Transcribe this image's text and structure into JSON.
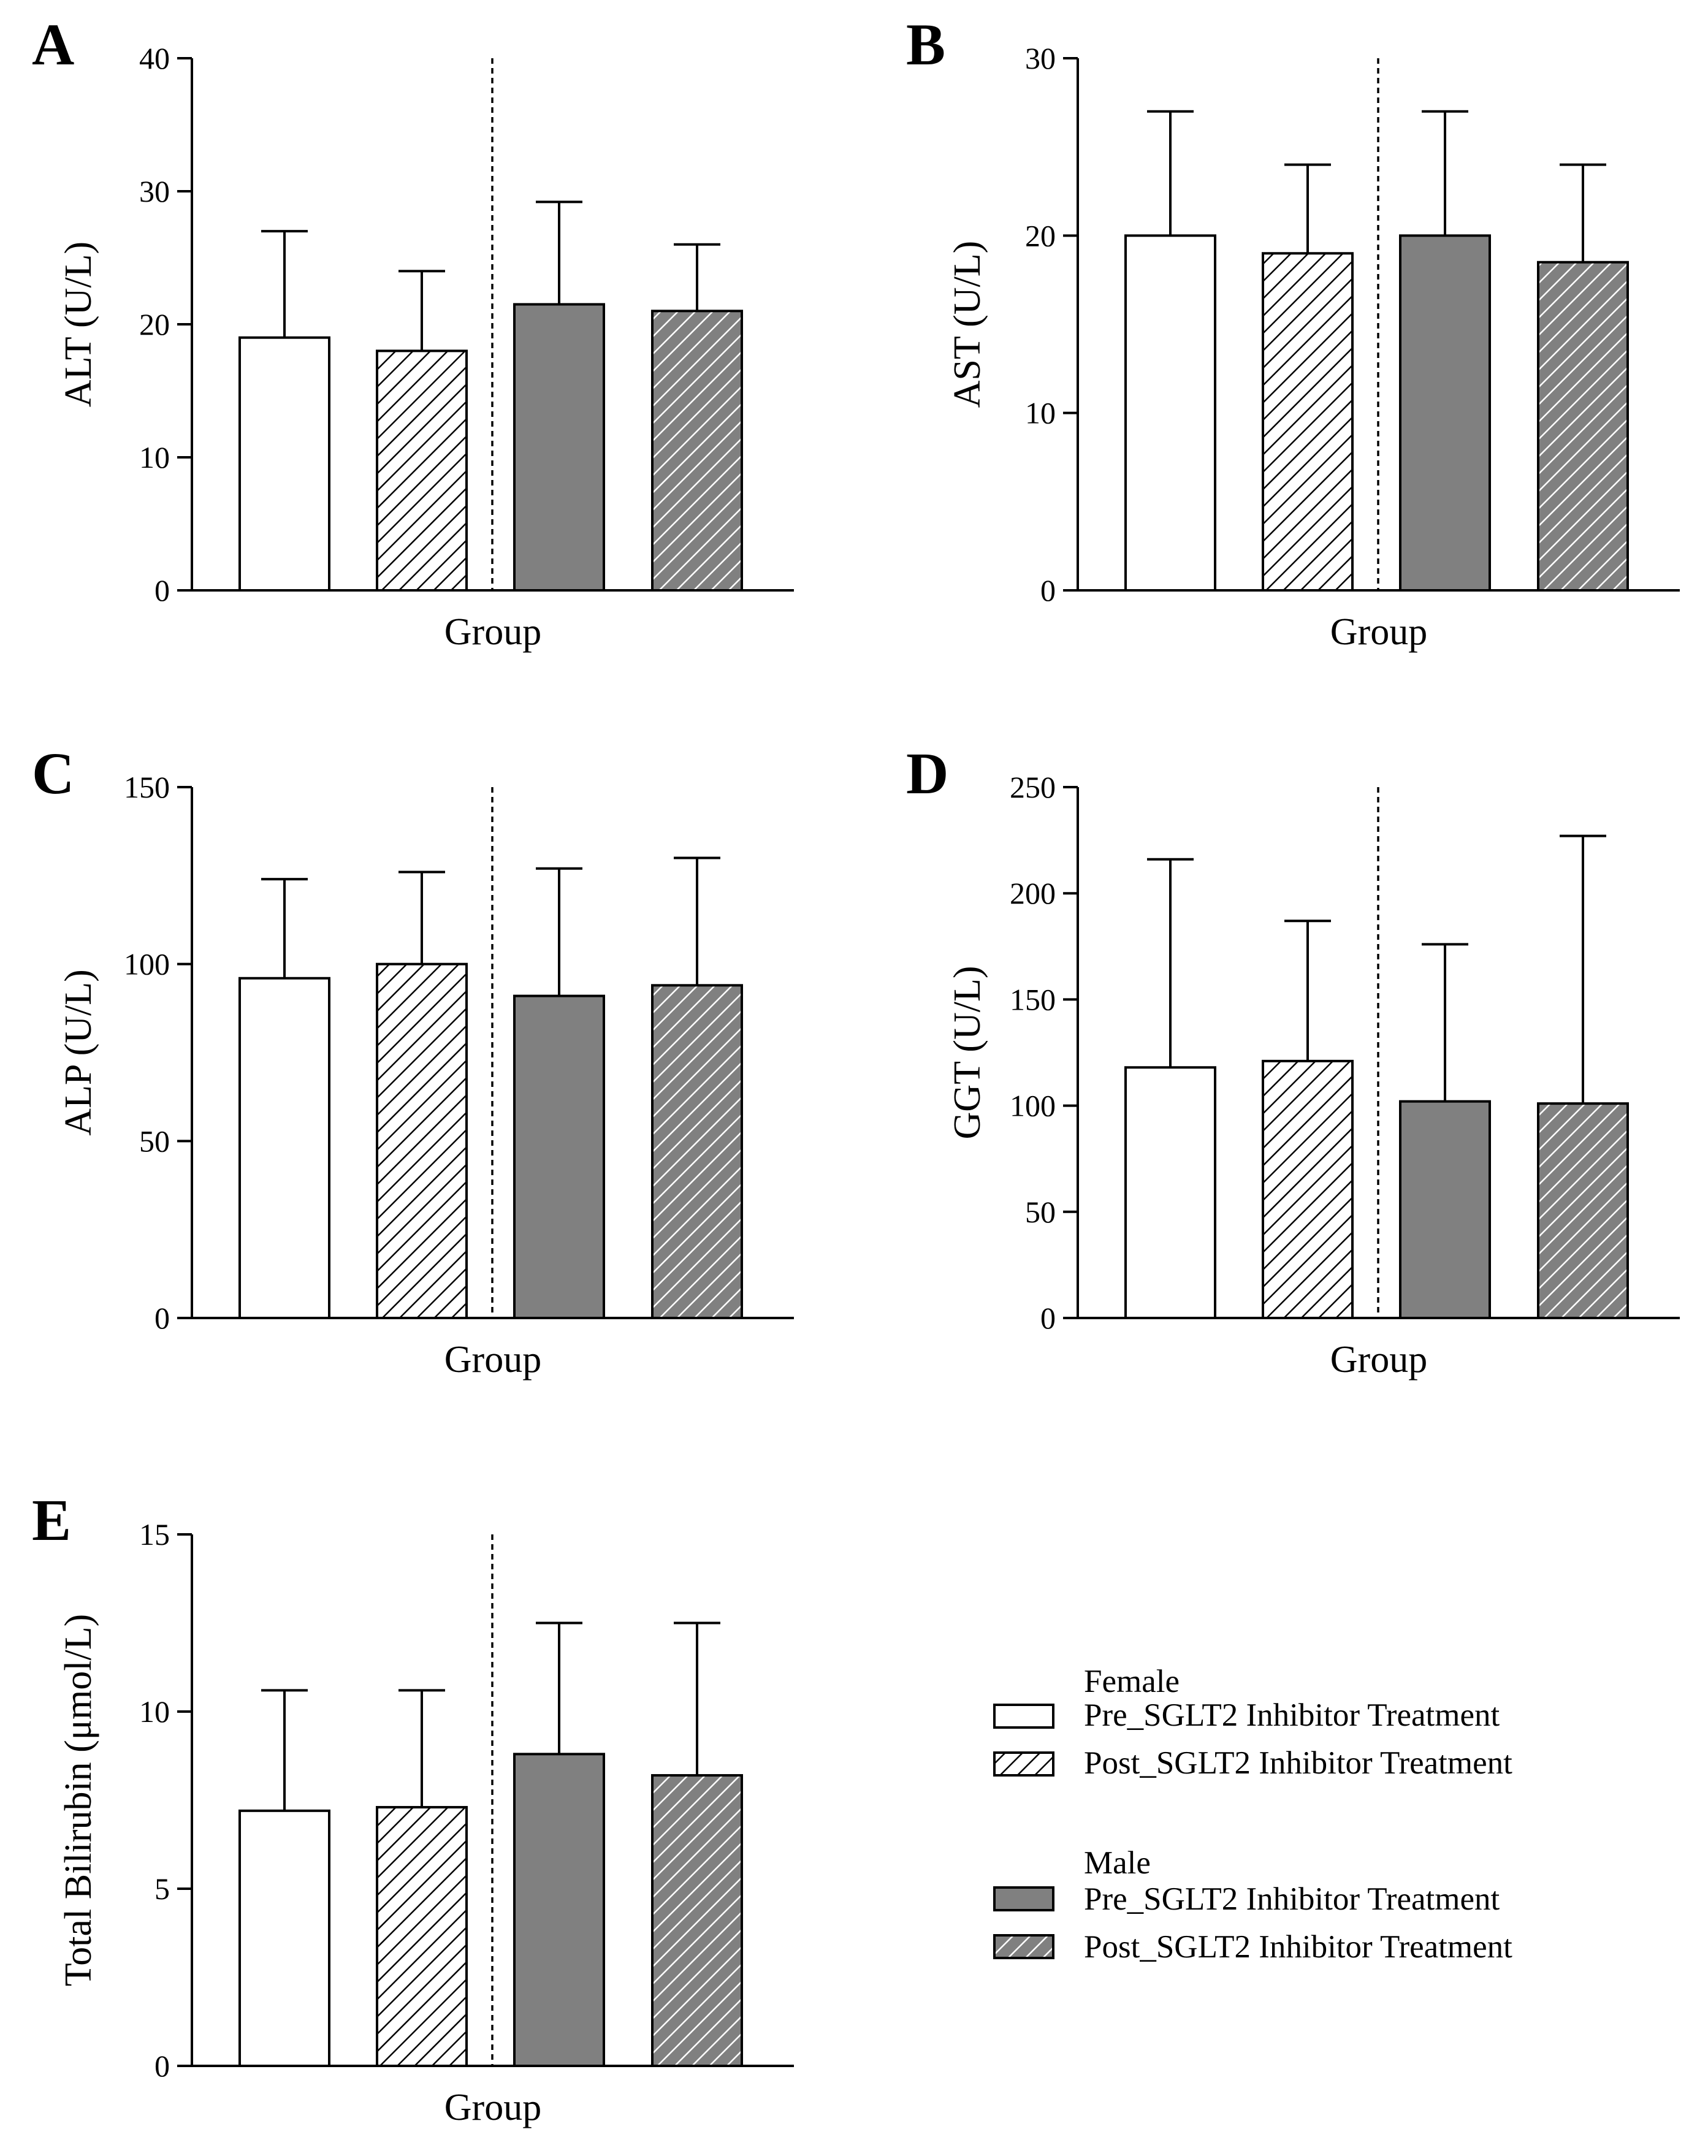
{
  "figure": {
    "colors": {
      "female_pre_fill": "#ffffff",
      "female_post_fill": "#ffffff",
      "male_pre_fill": "#808080",
      "male_post_fill": "#808080",
      "stroke": "#000000",
      "hatch_on_white": "#000000",
      "hatch_on_grey": "#ffffff"
    }
  },
  "legend": {
    "female": {
      "title": "Female",
      "items": [
        {
          "label": "Pre_SGLT2 Inhibitor Treatment",
          "style": "female_pre"
        },
        {
          "label": "Post_SGLT2 Inhibitor Treatment",
          "style": "female_post"
        }
      ]
    },
    "male": {
      "title": "Male",
      "items": [
        {
          "label": "Pre_SGLT2 Inhibitor Treatment",
          "style": "male_pre"
        },
        {
          "label": "Post_SGLT2 Inhibitor Treatment",
          "style": "male_post"
        }
      ]
    }
  },
  "chart_data": [
    {
      "type": "bar",
      "panel": "A",
      "xlabel": "Group",
      "ylabel": "ALT (U/L)",
      "ylim": [
        0,
        40
      ],
      "yticks": [
        0,
        10,
        20,
        30,
        40
      ],
      "group_divider": true,
      "bars": [
        {
          "group": "Female",
          "treatment": "Pre_SGLT2 Inhibitor Treatment",
          "value": 19,
          "error_upper": 27
        },
        {
          "group": "Female",
          "treatment": "Post_SGLT2 Inhibitor Treatment",
          "value": 18,
          "error_upper": 24
        },
        {
          "group": "Male",
          "treatment": "Pre_SGLT2 Inhibitor Treatment",
          "value": 21.5,
          "error_upper": 29.2
        },
        {
          "group": "Male",
          "treatment": "Post_SGLT2 Inhibitor Treatment",
          "value": 21,
          "error_upper": 26
        }
      ]
    },
    {
      "type": "bar",
      "panel": "B",
      "xlabel": "Group",
      "ylabel": "AST (U/L)",
      "ylim": [
        0,
        30
      ],
      "yticks": [
        0,
        10,
        20,
        30
      ],
      "group_divider": true,
      "bars": [
        {
          "group": "Female",
          "treatment": "Pre_SGLT2 Inhibitor Treatment",
          "value": 20,
          "error_upper": 27
        },
        {
          "group": "Female",
          "treatment": "Post_SGLT2 Inhibitor Treatment",
          "value": 19,
          "error_upper": 24
        },
        {
          "group": "Male",
          "treatment": "Pre_SGLT2 Inhibitor Treatment",
          "value": 20,
          "error_upper": 27
        },
        {
          "group": "Male",
          "treatment": "Post_SGLT2 Inhibitor Treatment",
          "value": 18.5,
          "error_upper": 24
        }
      ]
    },
    {
      "type": "bar",
      "panel": "C",
      "xlabel": "Group",
      "ylabel": "ALP (U/L)",
      "ylim": [
        0,
        150
      ],
      "yticks": [
        0,
        50,
        100,
        150
      ],
      "group_divider": true,
      "bars": [
        {
          "group": "Female",
          "treatment": "Pre_SGLT2 Inhibitor Treatment",
          "value": 96,
          "error_upper": 124
        },
        {
          "group": "Female",
          "treatment": "Post_SGLT2 Inhibitor Treatment",
          "value": 100,
          "error_upper": 126
        },
        {
          "group": "Male",
          "treatment": "Pre_SGLT2 Inhibitor Treatment",
          "value": 91,
          "error_upper": 127
        },
        {
          "group": "Male",
          "treatment": "Post_SGLT2 Inhibitor Treatment",
          "value": 94,
          "error_upper": 130
        }
      ]
    },
    {
      "type": "bar",
      "panel": "D",
      "xlabel": "Group",
      "ylabel": "GGT (U/L)",
      "ylim": [
        0,
        250
      ],
      "yticks": [
        0,
        50,
        100,
        150,
        200,
        250
      ],
      "group_divider": true,
      "bars": [
        {
          "group": "Female",
          "treatment": "Pre_SGLT2 Inhibitor Treatment",
          "value": 118,
          "error_upper": 216
        },
        {
          "group": "Female",
          "treatment": "Post_SGLT2 Inhibitor Treatment",
          "value": 121,
          "error_upper": 187
        },
        {
          "group": "Male",
          "treatment": "Pre_SGLT2 Inhibitor Treatment",
          "value": 102,
          "error_upper": 176
        },
        {
          "group": "Male",
          "treatment": "Post_SGLT2 Inhibitor Treatment",
          "value": 101,
          "error_upper": 227
        }
      ]
    },
    {
      "type": "bar",
      "panel": "E",
      "xlabel": "Group",
      "ylabel": "Total Bilirubin (μmol/L)",
      "ylim": [
        0,
        15
      ],
      "yticks": [
        0,
        5,
        10,
        15
      ],
      "group_divider": true,
      "bars": [
        {
          "group": "Female",
          "treatment": "Pre_SGLT2 Inhibitor Treatment",
          "value": 7.2,
          "error_upper": 10.6
        },
        {
          "group": "Female",
          "treatment": "Post_SGLT2 Inhibitor Treatment",
          "value": 7.3,
          "error_upper": 10.6
        },
        {
          "group": "Male",
          "treatment": "Pre_SGLT2 Inhibitor Treatment",
          "value": 8.8,
          "error_upper": 12.5
        },
        {
          "group": "Male",
          "treatment": "Post_SGLT2 Inhibitor Treatment",
          "value": 8.2,
          "error_upper": 12.5
        }
      ]
    }
  ]
}
